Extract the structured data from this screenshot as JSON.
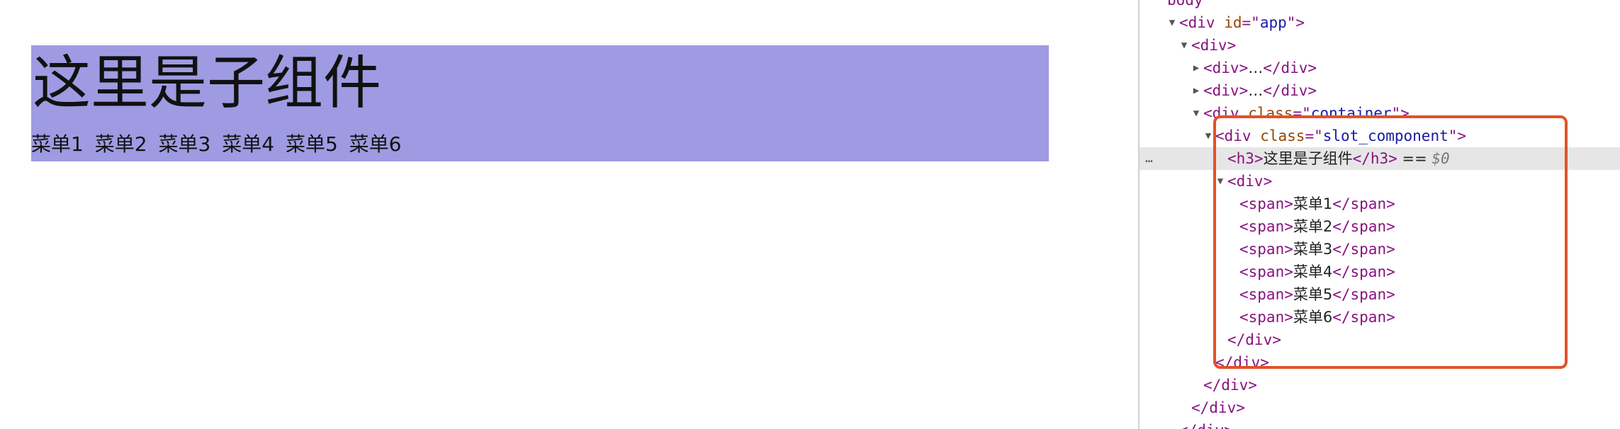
{
  "page": {
    "title": "这里是子组件",
    "menu": [
      "菜单1",
      "菜单2",
      "菜单3",
      "菜单4",
      "菜单5",
      "菜单6"
    ],
    "background_color": "#9e9be2"
  },
  "devtools": {
    "lines": [
      {
        "indent": 0,
        "tri": "none",
        "parts": [
          {
            "t": "tag",
            "v": "body"
          }
        ]
      },
      {
        "indent": 1,
        "tri": "down",
        "parts": [
          {
            "t": "tag",
            "v": "<div "
          },
          {
            "t": "attr",
            "v": "id"
          },
          {
            "t": "tag",
            "v": "=\""
          },
          {
            "t": "val",
            "v": "app"
          },
          {
            "t": "tag",
            "v": "\">"
          }
        ]
      },
      {
        "indent": 2,
        "tri": "down",
        "parts": [
          {
            "t": "tag",
            "v": "<div>"
          }
        ]
      },
      {
        "indent": 3,
        "tri": "right",
        "parts": [
          {
            "t": "tag",
            "v": "<div>"
          },
          {
            "t": "txt",
            "v": "…"
          },
          {
            "t": "tag",
            "v": "</div>"
          }
        ]
      },
      {
        "indent": 3,
        "tri": "right",
        "parts": [
          {
            "t": "tag",
            "v": "<div>"
          },
          {
            "t": "txt",
            "v": "…"
          },
          {
            "t": "tag",
            "v": "</div>"
          }
        ]
      },
      {
        "indent": 3,
        "tri": "down",
        "parts": [
          {
            "t": "tag",
            "v": "<div "
          },
          {
            "t": "attr",
            "v": "class"
          },
          {
            "t": "tag",
            "v": "=\""
          },
          {
            "t": "val",
            "v": "container"
          },
          {
            "t": "tag",
            "v": "\">"
          }
        ]
      },
      {
        "indent": 4,
        "tri": "down",
        "parts": [
          {
            "t": "tag",
            "v": "<div "
          },
          {
            "t": "attr",
            "v": "class"
          },
          {
            "t": "tag",
            "v": "=\""
          },
          {
            "t": "val",
            "v": "slot_component"
          },
          {
            "t": "tag",
            "v": "\">"
          }
        ]
      },
      {
        "indent": 5,
        "tri": "none",
        "selected": true,
        "parts": [
          {
            "t": "tag",
            "v": "<h3>"
          },
          {
            "t": "txt",
            "v": "这里是子组件"
          },
          {
            "t": "tag",
            "v": "</h3>"
          },
          {
            "t": "txt",
            "v": " == "
          },
          {
            "t": "dollar",
            "v": "$0"
          }
        ]
      },
      {
        "indent": 5,
        "tri": "down",
        "parts": [
          {
            "t": "tag",
            "v": "<div>"
          }
        ]
      },
      {
        "indent": 6,
        "tri": "none",
        "parts": [
          {
            "t": "tag",
            "v": "<span>"
          },
          {
            "t": "txt",
            "v": "菜单1"
          },
          {
            "t": "tag",
            "v": "</span>"
          }
        ]
      },
      {
        "indent": 6,
        "tri": "none",
        "parts": [
          {
            "t": "tag",
            "v": "<span>"
          },
          {
            "t": "txt",
            "v": "菜单2"
          },
          {
            "t": "tag",
            "v": "</span>"
          }
        ]
      },
      {
        "indent": 6,
        "tri": "none",
        "parts": [
          {
            "t": "tag",
            "v": "<span>"
          },
          {
            "t": "txt",
            "v": "菜单3"
          },
          {
            "t": "tag",
            "v": "</span>"
          }
        ]
      },
      {
        "indent": 6,
        "tri": "none",
        "parts": [
          {
            "t": "tag",
            "v": "<span>"
          },
          {
            "t": "txt",
            "v": "菜单4"
          },
          {
            "t": "tag",
            "v": "</span>"
          }
        ]
      },
      {
        "indent": 6,
        "tri": "none",
        "parts": [
          {
            "t": "tag",
            "v": "<span>"
          },
          {
            "t": "txt",
            "v": "菜单5"
          },
          {
            "t": "tag",
            "v": "</span>"
          }
        ]
      },
      {
        "indent": 6,
        "tri": "none",
        "parts": [
          {
            "t": "tag",
            "v": "<span>"
          },
          {
            "t": "txt",
            "v": "菜单6"
          },
          {
            "t": "tag",
            "v": "</span>"
          }
        ]
      },
      {
        "indent": 5,
        "tri": "none",
        "parts": [
          {
            "t": "tag",
            "v": "</div>"
          }
        ]
      },
      {
        "indent": 4,
        "tri": "none",
        "parts": [
          {
            "t": "tag",
            "v": "</div>"
          }
        ]
      },
      {
        "indent": 3,
        "tri": "none",
        "parts": [
          {
            "t": "tag",
            "v": "</div>"
          }
        ]
      },
      {
        "indent": 2,
        "tri": "none",
        "parts": [
          {
            "t": "tag",
            "v": "</div>"
          }
        ]
      },
      {
        "indent": 1,
        "tri": "none",
        "parts": [
          {
            "t": "tag",
            "v": "</div>"
          }
        ]
      }
    ],
    "selected_marker": "…",
    "highlight_color": "#e0532a"
  }
}
